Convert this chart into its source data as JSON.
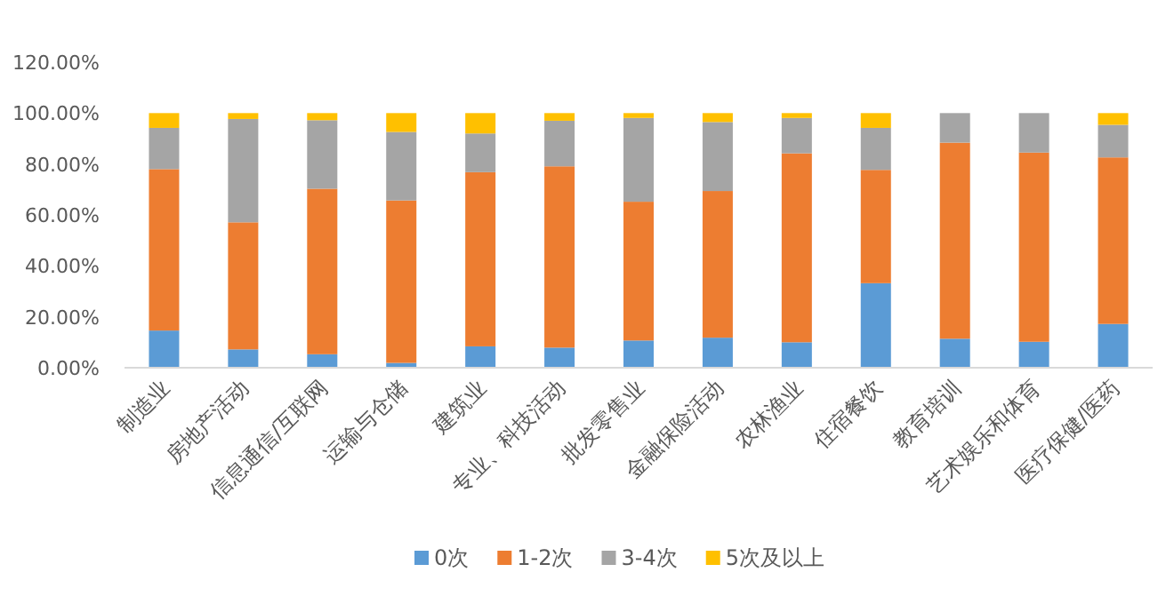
{
  "chart_data": {
    "type": "bar",
    "stacked": true,
    "legend": "bottom",
    "categories": [
      "制造业",
      "房地产活动",
      "信息通信/互联网",
      "运输与仓储",
      "建筑业",
      "专业、科技活动",
      "批发零售业",
      "金融保险活动",
      "农林渔业",
      "住宿餐饮",
      "教育培训",
      "艺术娱乐和体育",
      "医疗保健/医药"
    ],
    "series": [
      {
        "name": "0次",
        "color": "#5b9bd5",
        "values": [
          14.6,
          7.2,
          5.3,
          1.9,
          8.4,
          7.9,
          10.7,
          11.8,
          10.0,
          33.2,
          11.4,
          10.2,
          17.2
        ]
      },
      {
        "name": "1-2次",
        "color": "#ed7d31",
        "values": [
          63.4,
          49.9,
          65.0,
          63.8,
          68.4,
          71.2,
          54.5,
          57.6,
          74.2,
          44.5,
          77.0,
          74.3,
          65.4
        ]
      },
      {
        "name": "3-4次",
        "color": "#a5a5a5",
        "values": [
          16.2,
          40.6,
          26.9,
          26.9,
          15.2,
          17.9,
          32.9,
          27.1,
          13.9,
          16.5,
          11.6,
          15.5,
          12.8
        ]
      },
      {
        "name": "5次及以上",
        "color": "#ffc000",
        "values": [
          5.8,
          2.3,
          2.8,
          7.4,
          8.0,
          3.0,
          1.9,
          3.5,
          1.9,
          5.8,
          0,
          0,
          4.6
        ]
      }
    ],
    "ylim": [
      0,
      120
    ],
    "yticks": [
      {
        "value": 0,
        "label": "0.00%"
      },
      {
        "value": 20,
        "label": "20.00%"
      },
      {
        "value": 40,
        "label": "40.00%"
      },
      {
        "value": 60,
        "label": "60.00%"
      },
      {
        "value": 80,
        "label": "80.00%"
      },
      {
        "value": 100,
        "label": "100.00%"
      },
      {
        "value": 120,
        "label": "120.00%"
      }
    ]
  }
}
